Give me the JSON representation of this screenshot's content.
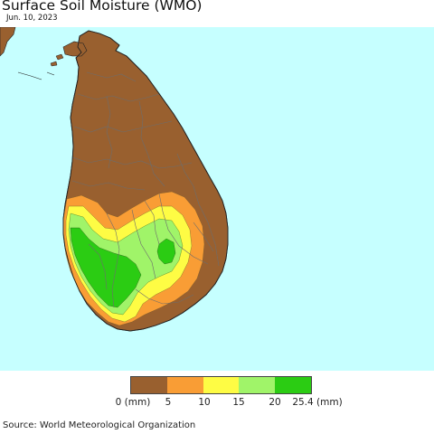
{
  "header": {
    "title": "Surface Soil Moisture (WMO)",
    "date": "Jun. 10, 2023"
  },
  "legend": {
    "colors": [
      "#99602f",
      "#f99d35",
      "#fefc44",
      "#a0f469",
      "#2bcc13"
    ],
    "tick_labels": [
      "0 (mm)",
      "5",
      "10",
      "15",
      "20",
      "25.4 (mm)"
    ]
  },
  "map": {
    "ocean_color": "#c6ffff",
    "land_color": "#99602f",
    "region": "Sri Lanka"
  },
  "footer": {
    "source": "Source: World Meteorological Organization"
  }
}
